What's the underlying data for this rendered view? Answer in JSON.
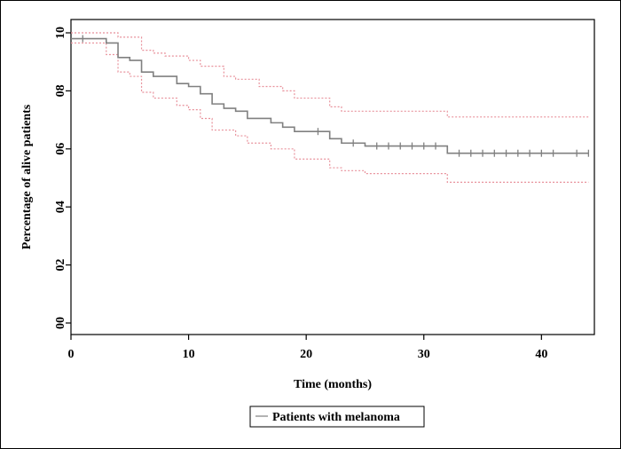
{
  "chart_data": {
    "type": "line",
    "xlabel": "Time (months)",
    "ylabel": "Percentage of alive patients",
    "xlim": [
      0,
      44.5
    ],
    "ylim": [
      0,
      1.0
    ],
    "x_ticks": [
      0,
      10,
      20,
      30,
      40
    ],
    "x_tick_labels": [
      "0",
      "10",
      "20",
      "30",
      "40"
    ],
    "y_ticks": [
      0,
      0.2,
      0.4,
      0.6,
      0.8,
      1.0
    ],
    "y_tick_labels": [
      "00",
      "02",
      "04",
      "06",
      "08",
      "10"
    ],
    "grid": false,
    "legend_position": "bottom-center",
    "legend": [
      "Patients with melanoma"
    ],
    "colors": {
      "survival": "#808080",
      "confidence": "#e8919b",
      "axis": "#000000"
    },
    "series": [
      {
        "name": "Patients with melanoma",
        "role": "survival",
        "x": [
          0,
          1,
          3,
          4,
          5,
          6,
          7,
          9,
          10,
          11,
          12,
          13,
          14,
          15,
          17,
          18,
          19,
          22,
          23,
          25,
          32,
          44
        ],
        "y": [
          0.98,
          0.98,
          0.965,
          0.915,
          0.905,
          0.865,
          0.85,
          0.825,
          0.815,
          0.79,
          0.755,
          0.74,
          0.73,
          0.705,
          0.69,
          0.675,
          0.66,
          0.635,
          0.62,
          0.61,
          0.585,
          0.585
        ],
        "censored_x": [
          1,
          21,
          24,
          26,
          27,
          28,
          29,
          30,
          31,
          33,
          34,
          35,
          36,
          37,
          38,
          39,
          40,
          41,
          43,
          44
        ]
      },
      {
        "role": "upper-ci",
        "x": [
          0,
          4,
          6,
          7,
          8,
          10,
          11,
          13,
          14,
          16,
          18,
          19,
          22,
          23,
          32,
          44
        ],
        "y": [
          1.0,
          0.985,
          0.94,
          0.93,
          0.92,
          0.905,
          0.885,
          0.85,
          0.84,
          0.815,
          0.8,
          0.775,
          0.745,
          0.73,
          0.71,
          0.71
        ]
      },
      {
        "role": "lower-ci",
        "x": [
          0,
          3,
          4,
          5,
          6,
          7,
          9,
          10,
          11,
          12,
          14,
          15,
          17,
          19,
          22,
          23,
          25,
          32,
          44
        ],
        "y": [
          0.965,
          0.925,
          0.865,
          0.85,
          0.795,
          0.775,
          0.75,
          0.735,
          0.705,
          0.665,
          0.645,
          0.62,
          0.6,
          0.565,
          0.535,
          0.525,
          0.515,
          0.485,
          0.485
        ]
      }
    ]
  }
}
